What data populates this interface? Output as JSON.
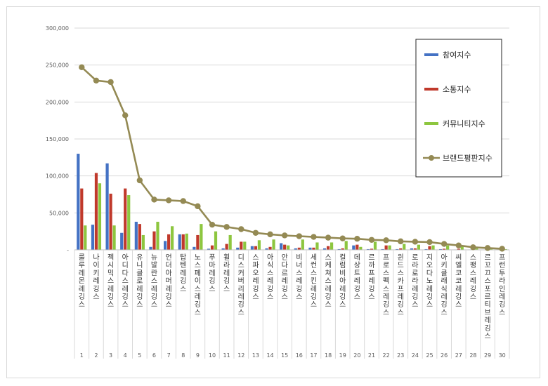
{
  "chart_data": {
    "type": "bar",
    "title": "",
    "xlabel": "",
    "ylabel": "",
    "ylim": [
      0,
      300000
    ],
    "yticks": [
      0,
      50000,
      100000,
      150000,
      200000,
      250000,
      300000
    ],
    "ytick_labels": [
      "-",
      "50,000",
      "100,000",
      "150,000",
      "200,000",
      "250,000",
      "300,000"
    ],
    "grid": true,
    "legend_position": "right",
    "indices": [
      "1",
      "2",
      "3",
      "4",
      "5",
      "6",
      "7",
      "8",
      "9",
      "10",
      "11",
      "12",
      "13",
      "14",
      "15",
      "16",
      "17",
      "18",
      "19",
      "20",
      "21",
      "22",
      "23",
      "24",
      "25",
      "26",
      "27",
      "28",
      "29",
      "30"
    ],
    "categories": [
      "룰루레몬레깅스",
      "나이키레깅스",
      "젝시믹스레깅스",
      "아디다스레깅스",
      "유니클로레깅스",
      "뉴발란스레깅스",
      "언더아머레깅스",
      "탑텐레깅스",
      "노스페이스레깅스",
      "푸마레깅스",
      "휠라레깅스",
      "디스커버리레깅스",
      "스파오레깅스",
      "아식스레깅스",
      "안다르레깅스",
      "비너스레깅스",
      "세컨스킨레깅스",
      "스케쳐스레깅스",
      "컬럼비아레깅스",
      "데상트레깅스",
      "르까프레깅스",
      "프로스펙스레깅스",
      "윈드스카프레깅스",
      "로라로라레깅스",
      "지오다노레깅스",
      "아키클래식레깅스",
      "씨엘코코레깅스",
      "스팽스레깅스",
      "르꼬끄스포르티브레깅스",
      "프런투라인레깅스"
    ],
    "series": [
      {
        "name": "참여지수",
        "type": "bar",
        "color": "#4472c4",
        "values": [
          130000,
          34000,
          117000,
          23000,
          38000,
          4000,
          12000,
          21000,
          4000,
          1500,
          2000,
          3000,
          5000,
          2000,
          9000,
          2000,
          3000,
          2000,
          1000,
          6000,
          1000,
          1000,
          1000,
          2000,
          1000,
          1000,
          500,
          500,
          300,
          200
        ]
      },
      {
        "name": "소통지수",
        "type": "bar",
        "color": "#c0392b",
        "values": [
          83000,
          104000,
          76000,
          83000,
          35000,
          25000,
          21000,
          21000,
          20000,
          6000,
          8000,
          11000,
          5000,
          4000,
          7000,
          3000,
          3000,
          5000,
          2000,
          7000,
          1500,
          6000,
          2000,
          2000,
          5000,
          1500,
          1500,
          1000,
          500,
          500
        ]
      },
      {
        "name": "커뮤니티지수",
        "type": "bar",
        "color": "#8dc63f",
        "values": [
          33000,
          90000,
          33000,
          74000,
          20000,
          38000,
          32000,
          22000,
          35000,
          25000,
          20000,
          11000,
          13000,
          14000,
          6000,
          14000,
          10000,
          10000,
          12000,
          4000,
          11000,
          6000,
          8000,
          7000,
          6000,
          6000,
          4500,
          2000,
          1500,
          1000
        ]
      },
      {
        "name": "브랜드평판지수",
        "type": "line",
        "color": "#948a54",
        "values": [
          247000,
          229000,
          227000,
          182000,
          94000,
          68000,
          67000,
          66000,
          59000,
          34000,
          31000,
          28000,
          23000,
          21000,
          19500,
          18500,
          17500,
          16500,
          15500,
          15000,
          13500,
          13000,
          11500,
          11000,
          10500,
          8000,
          6000,
          3500,
          2500,
          1500
        ]
      }
    ]
  }
}
